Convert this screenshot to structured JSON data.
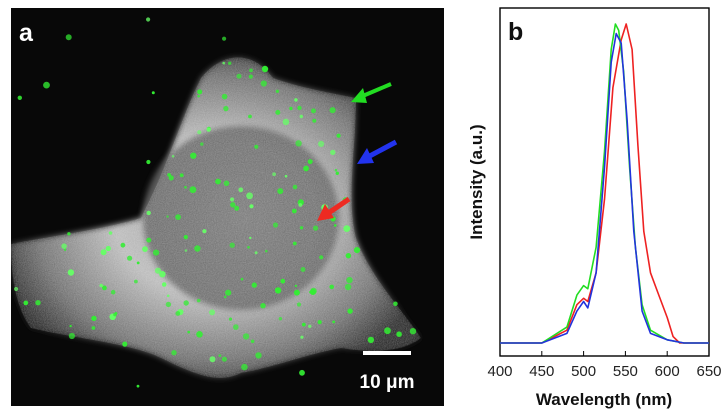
{
  "panel_a": {
    "letter": "a",
    "scale_bar_label": "10 μm",
    "arrows": [
      {
        "color": "#22dd22"
      },
      {
        "color": "#2233ee"
      },
      {
        "color": "#ee2a22"
      }
    ]
  },
  "panel_b": {
    "letter": "b"
  },
  "chart_data": {
    "type": "line",
    "title": "",
    "xlabel": "Wavelength (nm)",
    "ylabel": "Intensity (a.u.)",
    "xlim": [
      400,
      650
    ],
    "ylim": [
      0,
      1.03
    ],
    "xticks": [
      400,
      450,
      500,
      550,
      600,
      650
    ],
    "yticks": [],
    "grid": false,
    "legend": "none",
    "series": [
      {
        "color": "#ee2222",
        "x": [
          400,
          450,
          480,
          492,
          500,
          505,
          515,
          525,
          535,
          545,
          551,
          558,
          565,
          572,
          580,
          590,
          600,
          607,
          615,
          630,
          650
        ],
        "y": [
          0.0,
          0.0,
          0.04,
          0.12,
          0.14,
          0.13,
          0.22,
          0.45,
          0.8,
          0.95,
          1.0,
          0.92,
          0.62,
          0.35,
          0.22,
          0.15,
          0.08,
          0.02,
          0.0,
          0.0,
          0.0
        ]
      },
      {
        "color": "#22dd22",
        "x": [
          400,
          450,
          480,
          492,
          500,
          505,
          515,
          525,
          533,
          538,
          542,
          548,
          555,
          562,
          570,
          580,
          600,
          620,
          650
        ],
        "y": [
          0.0,
          0.0,
          0.05,
          0.15,
          0.18,
          0.17,
          0.3,
          0.6,
          0.92,
          1.0,
          0.98,
          0.85,
          0.55,
          0.3,
          0.12,
          0.04,
          0.01,
          0.0,
          0.0
        ]
      },
      {
        "color": "#2233dd",
        "x": [
          400,
          450,
          480,
          492,
          500,
          505,
          515,
          525,
          533,
          539,
          545,
          552,
          560,
          570,
          580,
          600,
          620,
          650
        ],
        "y": [
          0.0,
          0.0,
          0.03,
          0.1,
          0.13,
          0.11,
          0.22,
          0.55,
          0.88,
          0.97,
          0.94,
          0.7,
          0.35,
          0.1,
          0.03,
          0.01,
          0.0,
          0.0
        ]
      }
    ]
  }
}
